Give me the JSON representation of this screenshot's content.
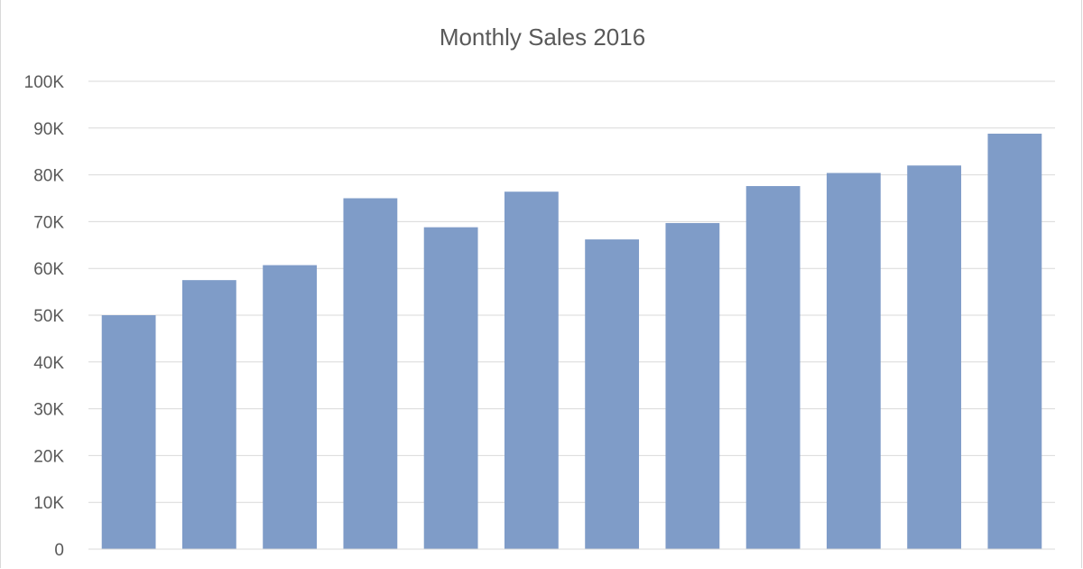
{
  "chart_data": {
    "type": "bar",
    "title": "Monthly Sales 2016",
    "xlabel": "",
    "ylabel": "",
    "categories": [
      "",
      "",
      "",
      "",
      "",
      "",
      "",
      "",
      "",
      "",
      "",
      ""
    ],
    "values": [
      50000,
      57500,
      60700,
      75000,
      68800,
      76400,
      66200,
      69700,
      77600,
      80400,
      82000,
      88800
    ],
    "ylim": [
      0,
      100000
    ],
    "yticks": [
      0,
      10000,
      20000,
      30000,
      40000,
      50000,
      60000,
      70000,
      80000,
      90000,
      100000
    ],
    "ytick_labels": [
      "0",
      "10K",
      "20K",
      "30K",
      "40K",
      "50K",
      "60K",
      "70K",
      "80K",
      "90K",
      "100K"
    ],
    "grid": true,
    "legend": "none",
    "colors": {
      "bar": "#7f9cc8",
      "grid": "#d9d9d9",
      "text": "#595959"
    }
  }
}
